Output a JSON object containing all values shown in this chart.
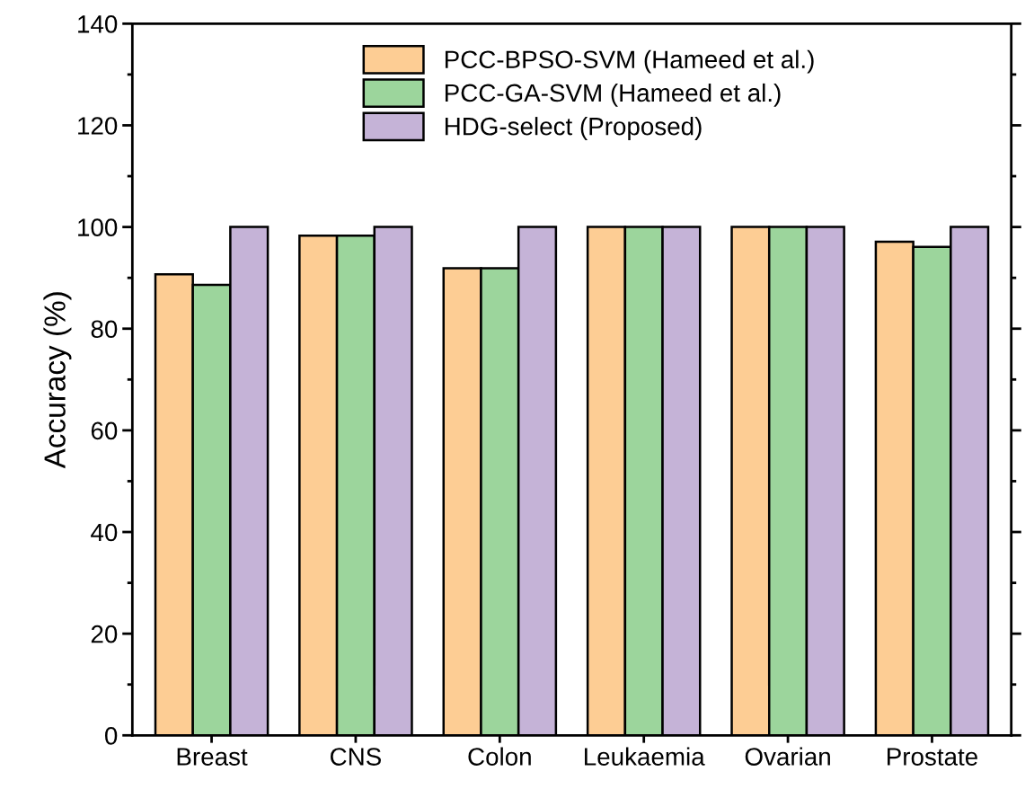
{
  "chart_data": {
    "type": "bar",
    "ylabel": "Accuracy (%)",
    "categories": [
      "Breast",
      "CNS",
      "Colon",
      "Leukaemia",
      "Ovarian",
      "Prostate"
    ],
    "series": [
      {
        "name": "PCC-BPSO-SVM (Hameed et al.)",
        "color": "#fdcd94",
        "values": [
          90.7,
          98.3,
          91.9,
          100,
          100,
          97.1
        ]
      },
      {
        "name": "PCC-GA-SVM (Hameed et al.)",
        "color": "#9cd59c",
        "values": [
          88.6,
          98.3,
          91.9,
          100,
          100,
          96.1
        ]
      },
      {
        "name": "HDG-select (Proposed)",
        "color": "#c5b3d7",
        "values": [
          100,
          100,
          100,
          100,
          100,
          100
        ]
      }
    ],
    "ylim": [
      0,
      140
    ],
    "yticks": [
      0,
      20,
      40,
      60,
      80,
      100,
      120,
      140
    ],
    "grid": false,
    "legend": "top"
  }
}
